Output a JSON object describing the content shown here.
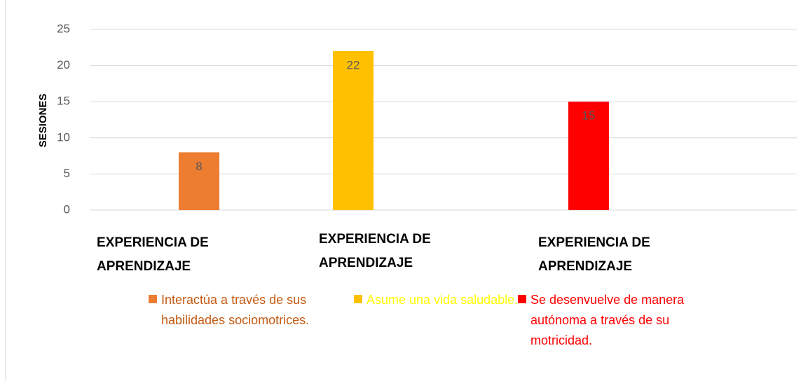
{
  "chart_data": {
    "type": "bar",
    "ylabel": "SESIONES",
    "categories": [
      "EXPERIENCIA DE APRENDIZAJE",
      "EXPERIENCIA DE APRENDIZAJE",
      "EXPERIENCIA DE APRENDIZAJE"
    ],
    "values": [
      8,
      22,
      15
    ],
    "colors": [
      "#ed7d31",
      "#ffc000",
      "#ff0000"
    ],
    "legend": [
      "Interactúa a través de sus habilidades sociomotrices.",
      "Asume una vida saludable.",
      "Se desenvuelve de manera autónoma a través de su motricidad."
    ],
    "legend_text_colors": [
      "#c55a11",
      "#ffff00",
      "#ff0000"
    ],
    "ylim": [
      0,
      25
    ],
    "yticks": [
      0,
      5,
      10,
      15,
      20,
      25
    ],
    "grid": true
  }
}
